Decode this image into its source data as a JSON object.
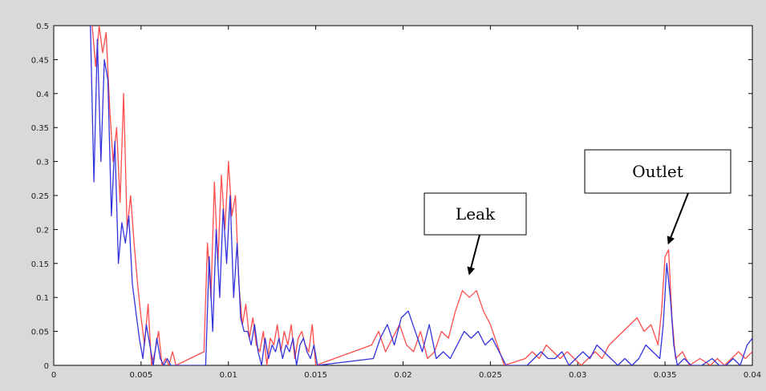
{
  "chart_data": {
    "type": "line",
    "title": "",
    "xlabel": "",
    "ylabel": "",
    "xlim": [
      0,
      0.04
    ],
    "ylim": [
      0,
      0.5
    ],
    "grid": false,
    "xticks": [
      0,
      0.005,
      0.01,
      0.015,
      0.02,
      0.025,
      0.03,
      0.035,
      0.04
    ],
    "yticks": [
      0,
      0.05,
      0.1,
      0.15,
      0.2,
      0.25,
      0.3,
      0.35,
      0.4,
      0.45,
      0.5
    ],
    "x_tick_labels": [
      "0",
      "0.005",
      "0.01",
      "0.015",
      "0.02",
      "0.025",
      "0.03",
      "0.035",
      "0.04"
    ],
    "y_tick_labels": [
      "0",
      "0.05",
      "0.1",
      "0.15",
      "0.2",
      "0.25",
      "0.3",
      "0.35",
      "0.4",
      "0.45",
      "0.5"
    ],
    "series": [
      {
        "color": "#ff4d4d",
        "x": [
          0.0022,
          0.0024,
          0.0026,
          0.0028,
          0.003,
          0.0032,
          0.0034,
          0.0036,
          0.0038,
          0.004,
          0.0042,
          0.0044,
          0.0046,
          0.0048,
          0.005,
          0.0052,
          0.0054,
          0.0056,
          0.0058,
          0.006,
          0.0062,
          0.0064,
          0.0066,
          0.0068,
          0.007,
          0.0086,
          0.0088,
          0.009,
          0.0092,
          0.0094,
          0.0096,
          0.0098,
          0.01,
          0.0102,
          0.0104,
          0.0106,
          0.0108,
          0.011,
          0.0112,
          0.0114,
          0.0116,
          0.0118,
          0.012,
          0.0122,
          0.0124,
          0.0126,
          0.0128,
          0.013,
          0.0132,
          0.0134,
          0.0136,
          0.0138,
          0.014,
          0.0142,
          0.0144,
          0.0146,
          0.0148,
          0.015,
          0.0182,
          0.0186,
          0.019,
          0.0194,
          0.0198,
          0.0202,
          0.0206,
          0.021,
          0.0214,
          0.0218,
          0.0222,
          0.0226,
          0.023,
          0.0234,
          0.0238,
          0.0242,
          0.0246,
          0.025,
          0.0254,
          0.0258,
          0.027,
          0.0274,
          0.0278,
          0.0282,
          0.0286,
          0.029,
          0.0294,
          0.0298,
          0.0302,
          0.0306,
          0.031,
          0.0314,
          0.0318,
          0.0322,
          0.0326,
          0.033,
          0.0334,
          0.0338,
          0.0342,
          0.0346,
          0.0348,
          0.035,
          0.0352,
          0.0354,
          0.0356,
          0.036,
          0.0364,
          0.037,
          0.0376,
          0.038,
          0.0384,
          0.0388,
          0.0392,
          0.0396,
          0.04
        ],
        "y": [
          0.5,
          0.44,
          0.5,
          0.46,
          0.49,
          0.38,
          0.3,
          0.35,
          0.24,
          0.4,
          0.2,
          0.25,
          0.18,
          0.12,
          0.07,
          0.03,
          0.09,
          0.0,
          0.02,
          0.05,
          0.0,
          0.01,
          0.0,
          0.02,
          0.0,
          0.02,
          0.18,
          0.1,
          0.27,
          0.15,
          0.28,
          0.2,
          0.3,
          0.22,
          0.25,
          0.12,
          0.06,
          0.09,
          0.04,
          0.07,
          0.03,
          0.02,
          0.05,
          0.0,
          0.04,
          0.03,
          0.06,
          0.02,
          0.05,
          0.03,
          0.06,
          0.01,
          0.04,
          0.05,
          0.03,
          0.02,
          0.06,
          0.0,
          0.03,
          0.05,
          0.02,
          0.04,
          0.06,
          0.03,
          0.02,
          0.05,
          0.01,
          0.02,
          0.05,
          0.04,
          0.08,
          0.11,
          0.1,
          0.11,
          0.08,
          0.06,
          0.03,
          0.0,
          0.01,
          0.02,
          0.01,
          0.03,
          0.02,
          0.01,
          0.02,
          0.01,
          0.0,
          0.01,
          0.02,
          0.01,
          0.03,
          0.04,
          0.05,
          0.06,
          0.07,
          0.05,
          0.06,
          0.03,
          0.08,
          0.16,
          0.17,
          0.07,
          0.01,
          0.02,
          0.0,
          0.01,
          0.0,
          0.01,
          0.0,
          0.01,
          0.02,
          0.01,
          0.02
        ]
      },
      {
        "color": "#3333dd",
        "x": [
          0.0021,
          0.0023,
          0.0025,
          0.0027,
          0.0029,
          0.0031,
          0.0033,
          0.0035,
          0.0037,
          0.0039,
          0.0041,
          0.0043,
          0.0045,
          0.0047,
          0.0049,
          0.0051,
          0.0053,
          0.0055,
          0.0057,
          0.0059,
          0.0061,
          0.0063,
          0.0065,
          0.0067,
          0.0069,
          0.0087,
          0.0089,
          0.0091,
          0.0093,
          0.0095,
          0.0097,
          0.0099,
          0.0101,
          0.0103,
          0.0105,
          0.0107,
          0.0109,
          0.0111,
          0.0113,
          0.0115,
          0.0117,
          0.0119,
          0.0121,
          0.0123,
          0.0125,
          0.0127,
          0.0129,
          0.0131,
          0.0133,
          0.0135,
          0.0137,
          0.0139,
          0.0141,
          0.0143,
          0.0145,
          0.0147,
          0.0149,
          0.0151,
          0.0183,
          0.0187,
          0.0191,
          0.0195,
          0.0199,
          0.0203,
          0.0207,
          0.0211,
          0.0215,
          0.0219,
          0.0223,
          0.0227,
          0.0231,
          0.0235,
          0.0239,
          0.0243,
          0.0247,
          0.0251,
          0.0255,
          0.0259,
          0.0271,
          0.0275,
          0.0279,
          0.0283,
          0.0287,
          0.0291,
          0.0295,
          0.0299,
          0.0303,
          0.0307,
          0.0311,
          0.0315,
          0.0319,
          0.0323,
          0.0327,
          0.0331,
          0.0335,
          0.0339,
          0.0343,
          0.0347,
          0.0349,
          0.0351,
          0.0353,
          0.0355,
          0.0357,
          0.0361,
          0.0365,
          0.0371,
          0.0377,
          0.0381,
          0.0385,
          0.0389,
          0.0393,
          0.0397,
          0.04
        ],
        "y": [
          0.5,
          0.27,
          0.48,
          0.3,
          0.45,
          0.42,
          0.22,
          0.33,
          0.15,
          0.21,
          0.18,
          0.22,
          0.12,
          0.08,
          0.04,
          0.01,
          0.06,
          0.03,
          0.0,
          0.04,
          0.01,
          0.0,
          0.01,
          0.0,
          0.0,
          0.0,
          0.16,
          0.05,
          0.2,
          0.1,
          0.23,
          0.15,
          0.25,
          0.1,
          0.18,
          0.07,
          0.05,
          0.05,
          0.03,
          0.06,
          0.02,
          0.0,
          0.04,
          0.01,
          0.03,
          0.02,
          0.04,
          0.01,
          0.03,
          0.02,
          0.04,
          0.0,
          0.03,
          0.04,
          0.02,
          0.01,
          0.03,
          0.0,
          0.01,
          0.04,
          0.06,
          0.03,
          0.07,
          0.08,
          0.05,
          0.02,
          0.06,
          0.01,
          0.02,
          0.01,
          0.03,
          0.05,
          0.04,
          0.05,
          0.03,
          0.04,
          0.02,
          0.0,
          0.0,
          0.01,
          0.02,
          0.01,
          0.01,
          0.02,
          0.0,
          0.01,
          0.02,
          0.01,
          0.03,
          0.02,
          0.01,
          0.0,
          0.01,
          0.0,
          0.01,
          0.03,
          0.02,
          0.01,
          0.06,
          0.15,
          0.1,
          0.03,
          0.0,
          0.01,
          0.0,
          0.0,
          0.01,
          0.0,
          0.0,
          0.01,
          0.0,
          0.03,
          0.04
        ]
      }
    ],
    "annotations": [
      {
        "text": "Leak",
        "point_x": 0.0238,
        "point_y": 0.135
      },
      {
        "text": "Outlet",
        "point_x": 0.0352,
        "point_y": 0.18
      }
    ]
  }
}
